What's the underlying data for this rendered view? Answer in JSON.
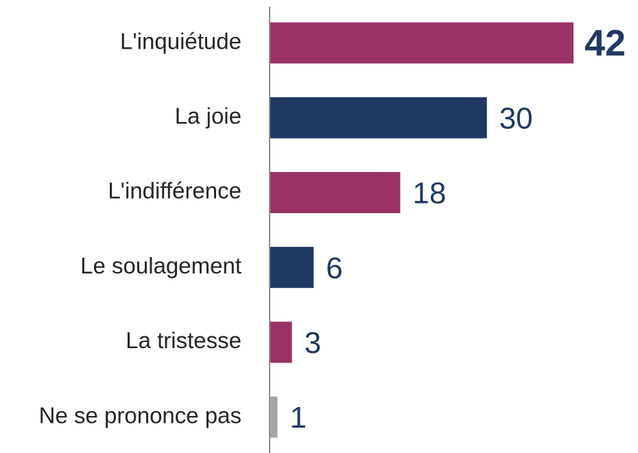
{
  "chart_data": {
    "type": "barh",
    "categories": [
      "L'inquiétude",
      "La joie",
      "L'indifférence",
      "Le soulagement",
      "La tristesse",
      "Ne se prononce pas"
    ],
    "values": [
      42,
      30,
      18,
      6,
      3,
      1
    ],
    "colors": [
      "#993366",
      "#1f3864",
      "#993366",
      "#1f3864",
      "#993366",
      "#a6a6a6"
    ]
  }
}
